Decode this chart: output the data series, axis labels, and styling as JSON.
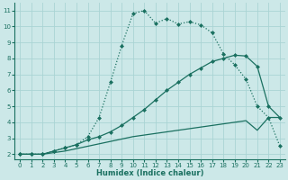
{
  "xlabel": "Humidex (Indice chaleur)",
  "bg_color": "#cce8e8",
  "grid_color": "#aad4d4",
  "line_color": "#1a7060",
  "xlim": [
    -0.5,
    23.5
  ],
  "ylim": [
    1.7,
    11.5
  ],
  "xticks": [
    0,
    1,
    2,
    3,
    4,
    5,
    6,
    7,
    8,
    9,
    10,
    11,
    12,
    13,
    14,
    15,
    16,
    17,
    18,
    19,
    20,
    21,
    22,
    23
  ],
  "yticks": [
    2,
    3,
    4,
    5,
    6,
    7,
    8,
    9,
    10,
    11
  ],
  "top_x": [
    0,
    1,
    2,
    3,
    4,
    5,
    6,
    7,
    8,
    9,
    10,
    11,
    12,
    13,
    14,
    15,
    16,
    17,
    18,
    19,
    20,
    21,
    22,
    23
  ],
  "top_y": [
    2,
    2,
    2,
    2.2,
    2.4,
    2.6,
    3.1,
    4.3,
    6.5,
    8.8,
    10.8,
    11.0,
    10.2,
    10.5,
    10.15,
    10.3,
    10.1,
    9.6,
    8.3,
    7.6,
    6.7,
    5.0,
    4.3,
    2.5
  ],
  "mid_x": [
    0,
    1,
    2,
    3,
    4,
    5,
    6,
    7,
    8,
    9,
    10,
    11,
    12,
    13,
    14,
    15,
    16,
    17,
    18,
    19,
    20,
    21,
    22,
    23
  ],
  "mid_y": [
    2,
    2,
    2,
    2.2,
    2.4,
    2.6,
    2.9,
    3.1,
    3.4,
    3.8,
    4.3,
    4.8,
    5.4,
    6.0,
    6.5,
    7.0,
    7.4,
    7.8,
    8.0,
    8.2,
    8.15,
    7.5,
    5.0,
    4.3
  ],
  "bot_x": [
    0,
    1,
    2,
    3,
    4,
    5,
    6,
    7,
    8,
    9,
    10,
    11,
    12,
    13,
    14,
    15,
    16,
    17,
    18,
    19,
    20,
    21,
    22,
    23
  ],
  "bot_y": [
    2,
    2,
    2,
    2.1,
    2.2,
    2.35,
    2.5,
    2.65,
    2.8,
    2.95,
    3.1,
    3.2,
    3.3,
    3.4,
    3.5,
    3.6,
    3.7,
    3.8,
    3.9,
    4.0,
    4.1,
    3.5,
    4.3,
    4.3
  ]
}
